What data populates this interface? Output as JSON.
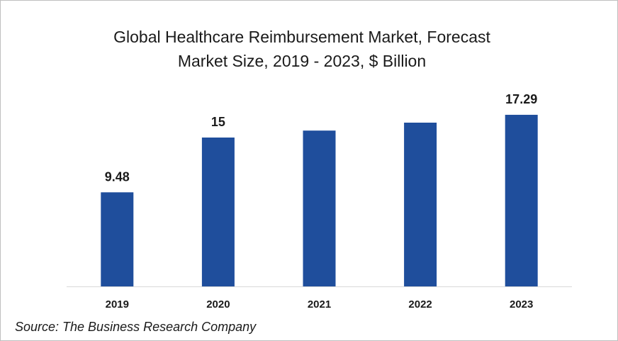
{
  "chart_data": {
    "type": "bar",
    "title_lines": [
      "Global Healthcare Reimbursement  Market, Forecast",
      "Market Size, 2019 - 2023, $ Billion"
    ],
    "categories": [
      "2019",
      "2020",
      "2021",
      "2022",
      "2023"
    ],
    "values": [
      9.48,
      15,
      15.7,
      16.5,
      17.29
    ],
    "data_labels": [
      "9.48",
      "15",
      "",
      "",
      "17.29"
    ],
    "xlabel": "",
    "ylabel": "",
    "ylim": [
      0,
      19.5
    ],
    "grid": false,
    "legend": "none",
    "bar_color": "#1f4e9c"
  },
  "source": "Source: The Business Research Company"
}
